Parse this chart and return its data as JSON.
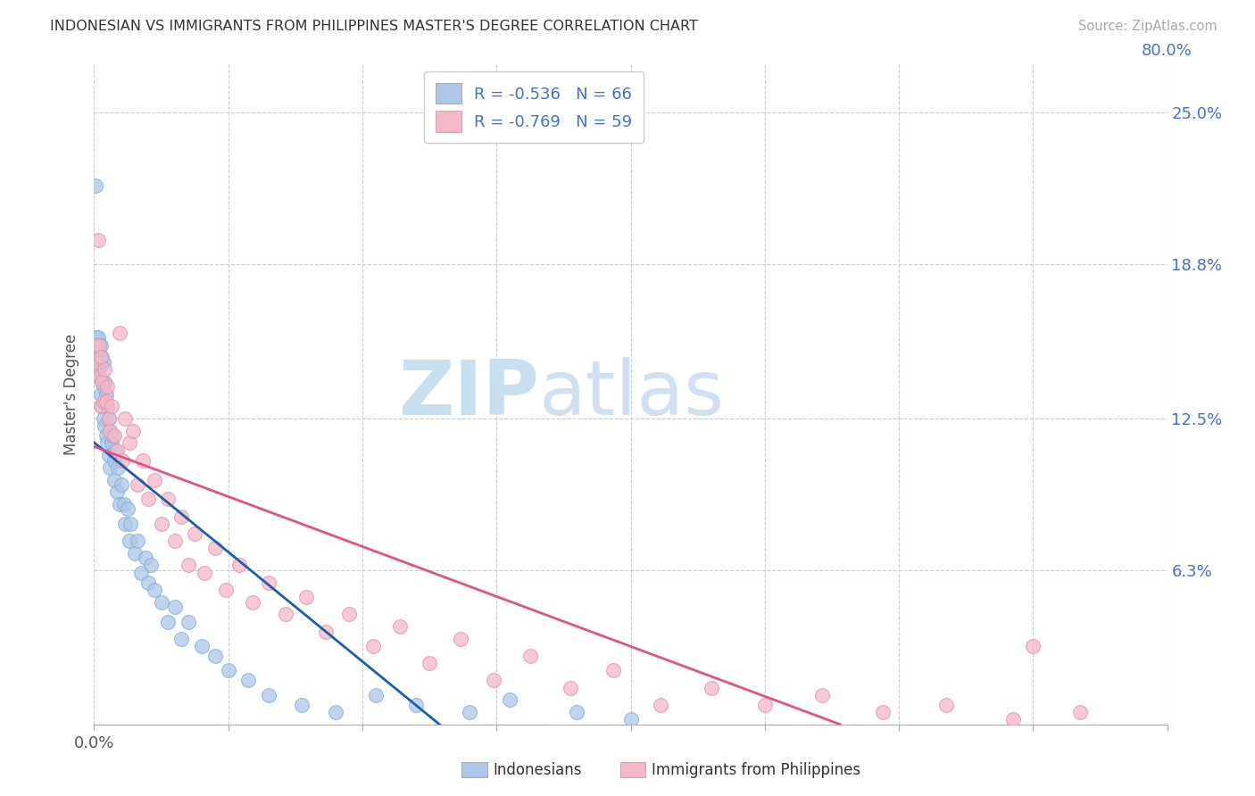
{
  "title": "INDONESIAN VS IMMIGRANTS FROM PHILIPPINES MASTER'S DEGREE CORRELATION CHART",
  "source": "Source: ZipAtlas.com",
  "ylabel": "Master's Degree",
  "ytick_labels": [
    "25.0%",
    "18.8%",
    "12.5%",
    "6.3%"
  ],
  "ytick_values": [
    0.25,
    0.188,
    0.125,
    0.063
  ],
  "xmin": 0.0,
  "xmax": 0.8,
  "ymin": 0.0,
  "ymax": 0.27,
  "legend_r1": "R = -0.536   N = 66",
  "legend_r2": "R = -0.769   N = 59",
  "blue_color": "#aec6e8",
  "pink_color": "#f4b8c8",
  "blue_line_color": "#1a5fa8",
  "pink_line_color": "#e0508a",
  "right_axis_color": "#4472c4",
  "indonesians_x": [
    0.001,
    0.002,
    0.002,
    0.003,
    0.003,
    0.003,
    0.004,
    0.004,
    0.005,
    0.005,
    0.005,
    0.006,
    0.006,
    0.006,
    0.007,
    0.007,
    0.007,
    0.008,
    0.008,
    0.009,
    0.009,
    0.01,
    0.01,
    0.011,
    0.011,
    0.012,
    0.012,
    0.013,
    0.014,
    0.015,
    0.015,
    0.016,
    0.017,
    0.018,
    0.019,
    0.02,
    0.022,
    0.023,
    0.025,
    0.026,
    0.027,
    0.03,
    0.032,
    0.035,
    0.038,
    0.04,
    0.042,
    0.045,
    0.05,
    0.055,
    0.06,
    0.065,
    0.07,
    0.08,
    0.09,
    0.1,
    0.115,
    0.13,
    0.155,
    0.18,
    0.21,
    0.24,
    0.28,
    0.31,
    0.36,
    0.4
  ],
  "indonesians_y": [
    0.22,
    0.158,
    0.15,
    0.158,
    0.152,
    0.143,
    0.155,
    0.145,
    0.155,
    0.148,
    0.135,
    0.15,
    0.14,
    0.13,
    0.148,
    0.138,
    0.125,
    0.14,
    0.122,
    0.135,
    0.118,
    0.13,
    0.115,
    0.125,
    0.11,
    0.12,
    0.105,
    0.115,
    0.118,
    0.108,
    0.1,
    0.112,
    0.095,
    0.105,
    0.09,
    0.098,
    0.09,
    0.082,
    0.088,
    0.075,
    0.082,
    0.07,
    0.075,
    0.062,
    0.068,
    0.058,
    0.065,
    0.055,
    0.05,
    0.042,
    0.048,
    0.035,
    0.042,
    0.032,
    0.028,
    0.022,
    0.018,
    0.012,
    0.008,
    0.005,
    0.012,
    0.008,
    0.005,
    0.01,
    0.005,
    0.002
  ],
  "philippines_x": [
    0.001,
    0.002,
    0.003,
    0.004,
    0.004,
    0.005,
    0.005,
    0.006,
    0.007,
    0.008,
    0.009,
    0.01,
    0.011,
    0.012,
    0.013,
    0.015,
    0.017,
    0.019,
    0.021,
    0.023,
    0.026,
    0.029,
    0.032,
    0.036,
    0.04,
    0.045,
    0.05,
    0.055,
    0.06,
    0.065,
    0.07,
    0.075,
    0.082,
    0.09,
    0.098,
    0.108,
    0.118,
    0.13,
    0.143,
    0.158,
    0.173,
    0.19,
    0.208,
    0.228,
    0.25,
    0.273,
    0.298,
    0.325,
    0.355,
    0.387,
    0.422,
    0.46,
    0.5,
    0.543,
    0.588,
    0.635,
    0.685,
    0.735,
    0.7
  ],
  "philippines_y": [
    0.155,
    0.148,
    0.198,
    0.155,
    0.142,
    0.15,
    0.13,
    0.14,
    0.132,
    0.145,
    0.132,
    0.138,
    0.125,
    0.12,
    0.13,
    0.118,
    0.112,
    0.16,
    0.108,
    0.125,
    0.115,
    0.12,
    0.098,
    0.108,
    0.092,
    0.1,
    0.082,
    0.092,
    0.075,
    0.085,
    0.065,
    0.078,
    0.062,
    0.072,
    0.055,
    0.065,
    0.05,
    0.058,
    0.045,
    0.052,
    0.038,
    0.045,
    0.032,
    0.04,
    0.025,
    0.035,
    0.018,
    0.028,
    0.015,
    0.022,
    0.008,
    0.015,
    0.008,
    0.012,
    0.005,
    0.008,
    0.002,
    0.005,
    0.032
  ]
}
